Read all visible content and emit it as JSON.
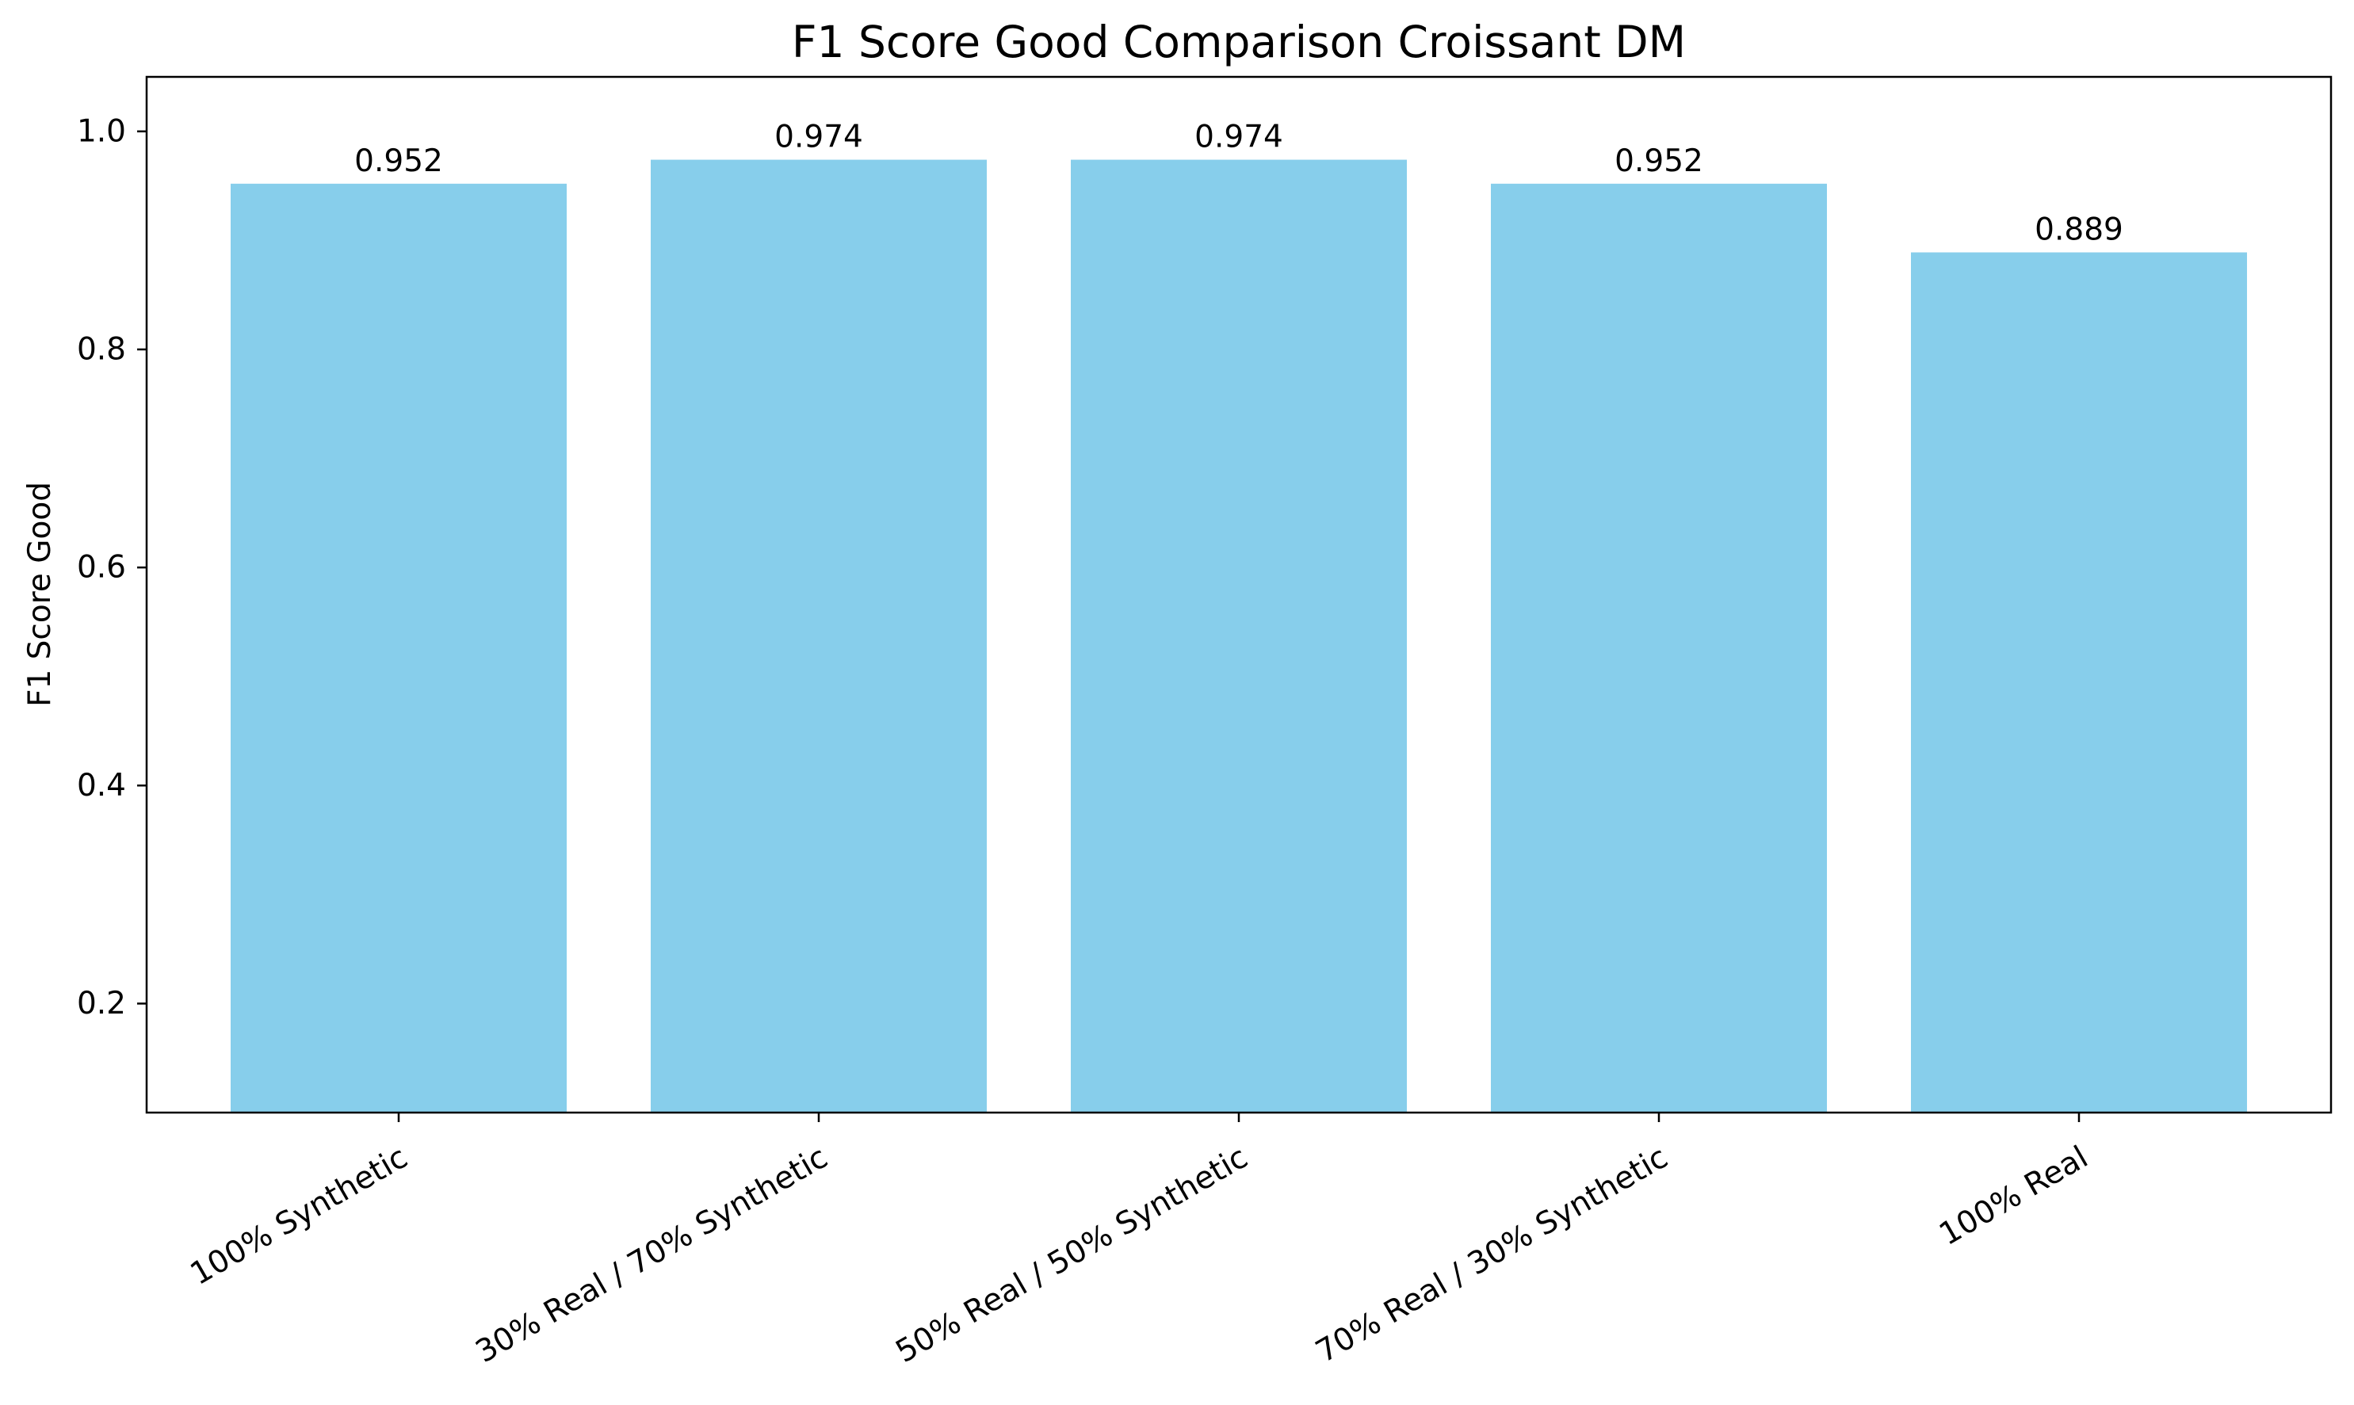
{
  "chart_data": {
    "type": "bar",
    "title": "F1 Score Good Comparison Croissant DM",
    "xlabel": "",
    "ylabel": "F1 Score Good",
    "categories": [
      "100% Synthetic",
      "30% Real / 70% Synthetic",
      "50% Real / 50% Synthetic",
      "70% Real / 30% Synthetic",
      "100% Real"
    ],
    "values": [
      0.952,
      0.974,
      0.974,
      0.952,
      0.889
    ],
    "data_labels": [
      "0.952",
      "0.974",
      "0.974",
      "0.952",
      "0.889"
    ],
    "ylim": [
      0.1,
      1.05
    ],
    "yticks": [
      0.2,
      0.4,
      0.6,
      0.8,
      1.0
    ],
    "ytick_labels": [
      "0.2",
      "0.4",
      "0.6",
      "0.8",
      "1.0"
    ],
    "bar_color": "#87ceeb",
    "grid": false,
    "legend": "none"
  }
}
